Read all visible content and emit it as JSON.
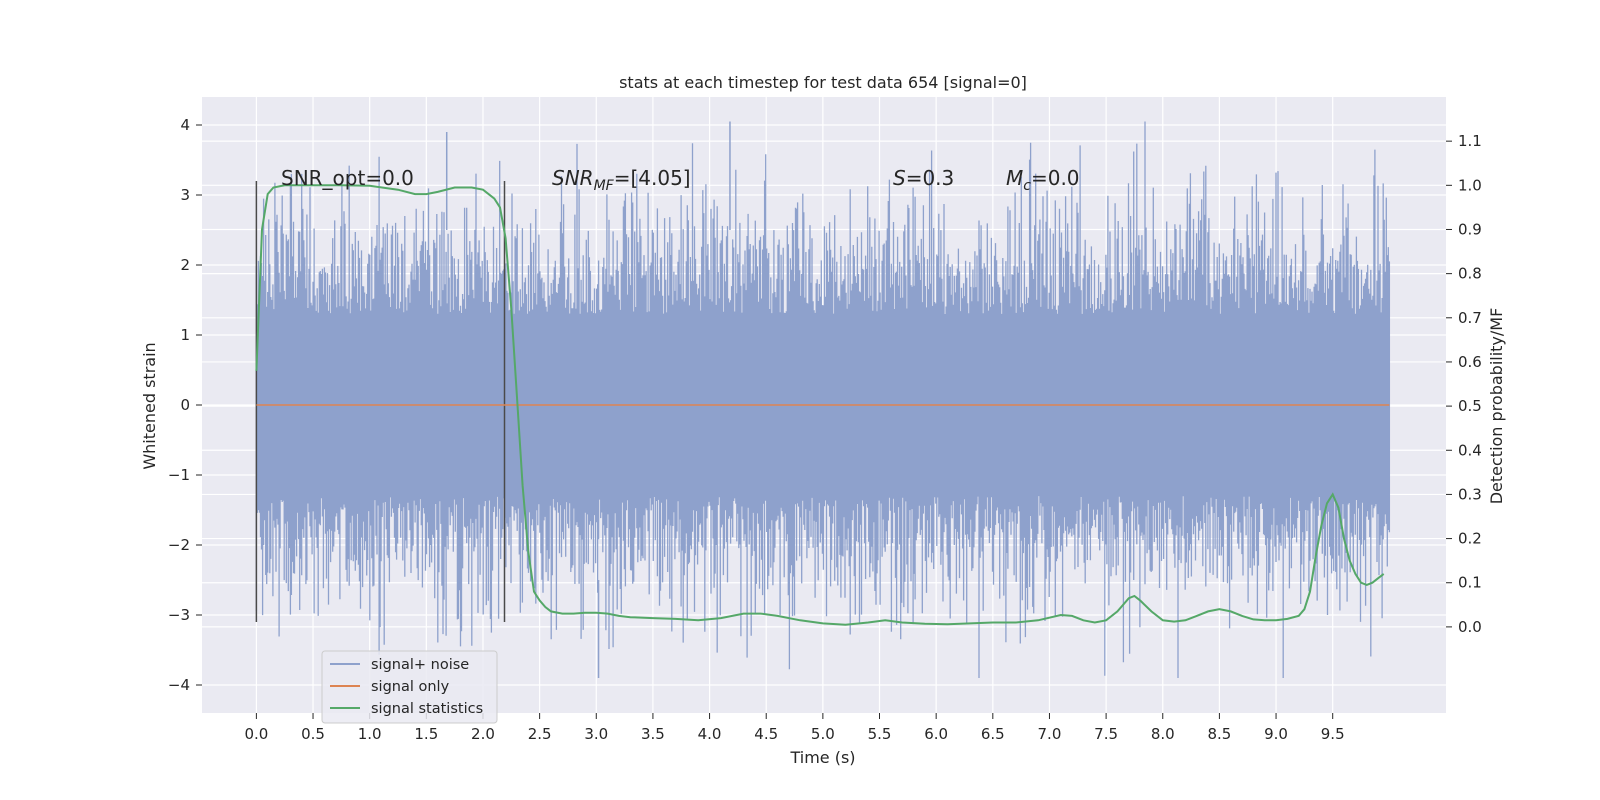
{
  "chart_data": {
    "type": "line",
    "title": "stats at each timestep for test data 654 [signal=0]",
    "xlabel": "Time (s)",
    "ylabel_left": "Whitened strain",
    "ylabel_right": "Detection probability/MF",
    "xlim": [
      -0.48,
      10.5
    ],
    "ylim_left": [
      -4.4,
      4.4
    ],
    "ylim_right": [
      -0.195,
      1.2
    ],
    "x_ticks": [
      "0.0",
      "0.5",
      "1.0",
      "1.5",
      "2.0",
      "2.5",
      "3.0",
      "3.5",
      "4.0",
      "4.5",
      "5.0",
      "5.5",
      "6.0",
      "6.5",
      "7.0",
      "7.5",
      "8.0",
      "8.5",
      "9.0",
      "9.5"
    ],
    "y_left_ticks": [
      "4",
      "3",
      "2",
      "1",
      "0",
      "−1",
      "−2",
      "−3",
      "−4"
    ],
    "y_right_ticks": [
      "1.1",
      "1.0",
      "0.9",
      "0.8",
      "0.7",
      "0.6",
      "0.5",
      "0.4",
      "0.3",
      "0.2",
      "0.1",
      "0.0"
    ],
    "grid": true,
    "legend_placement": "lower-left",
    "annotations": {
      "snr_opt": "SNR_opt=0.0",
      "snr_mf_main": "SNR",
      "snr_mf_sub": "MF",
      "snr_mf_rest": "=[4.05]",
      "s_main": "S",
      "s_rest": "=0.3",
      "mc_main": "M",
      "mc_sub": "c",
      "mc_rest": "=0.0"
    },
    "markers_x": [
      0.0,
      2.19
    ],
    "markers_y_range": [
      -3.1,
      3.2
    ],
    "series": [
      {
        "name": "signal+ noise",
        "color": "#8ea1cc",
        "axis": "left",
        "x_range": [
          0.0,
          10.0
        ],
        "core_band": [
          -1.3,
          1.3
        ],
        "typical_extent": [
          -2.6,
          2.6
        ],
        "extreme_min": -3.9,
        "extreme_max": 4.05
      },
      {
        "name": "signal only",
        "color": "#dd8452",
        "axis": "left",
        "x": [
          0.0,
          10.0
        ],
        "y": [
          0.0,
          0.0
        ]
      },
      {
        "name": "signal statistics",
        "color": "#55a868",
        "axis": "right",
        "x": [
          0.0,
          0.05,
          0.1,
          0.15,
          0.25,
          0.5,
          0.75,
          1.0,
          1.25,
          1.4,
          1.5,
          1.6,
          1.75,
          1.9,
          2.0,
          2.1,
          2.15,
          2.2,
          2.25,
          2.3,
          2.35,
          2.4,
          2.45,
          2.5,
          2.55,
          2.6,
          2.7,
          2.8,
          2.9,
          3.0,
          3.1,
          3.2,
          3.3,
          3.5,
          3.7,
          3.9,
          4.1,
          4.3,
          4.45,
          4.6,
          4.8,
          5.0,
          5.2,
          5.4,
          5.55,
          5.7,
          5.9,
          6.1,
          6.3,
          6.5,
          6.7,
          6.9,
          7.1,
          7.2,
          7.3,
          7.4,
          7.5,
          7.6,
          7.7,
          7.75,
          7.8,
          7.9,
          8.0,
          8.1,
          8.2,
          8.3,
          8.4,
          8.5,
          8.6,
          8.7,
          8.8,
          8.9,
          9.0,
          9.1,
          9.2,
          9.25,
          9.3,
          9.35,
          9.4,
          9.45,
          9.5,
          9.55,
          9.6,
          9.65,
          9.7,
          9.75,
          9.8,
          9.85,
          9.9,
          9.95
        ],
        "y": [
          0.58,
          0.9,
          0.98,
          0.995,
          1.0,
          1.0,
          1.0,
          0.999,
          0.99,
          0.98,
          0.98,
          0.985,
          0.995,
          0.995,
          0.99,
          0.97,
          0.95,
          0.88,
          0.72,
          0.52,
          0.32,
          0.17,
          0.08,
          0.06,
          0.045,
          0.035,
          0.03,
          0.03,
          0.032,
          0.032,
          0.03,
          0.025,
          0.022,
          0.02,
          0.018,
          0.015,
          0.02,
          0.03,
          0.03,
          0.025,
          0.015,
          0.008,
          0.005,
          0.01,
          0.015,
          0.01,
          0.007,
          0.006,
          0.008,
          0.01,
          0.01,
          0.015,
          0.027,
          0.025,
          0.015,
          0.01,
          0.015,
          0.035,
          0.065,
          0.07,
          0.06,
          0.035,
          0.015,
          0.012,
          0.015,
          0.025,
          0.035,
          0.04,
          0.035,
          0.025,
          0.017,
          0.015,
          0.015,
          0.018,
          0.025,
          0.04,
          0.08,
          0.16,
          0.23,
          0.28,
          0.3,
          0.27,
          0.2,
          0.15,
          0.12,
          0.1,
          0.095,
          0.1,
          0.11,
          0.12
        ]
      }
    ]
  }
}
